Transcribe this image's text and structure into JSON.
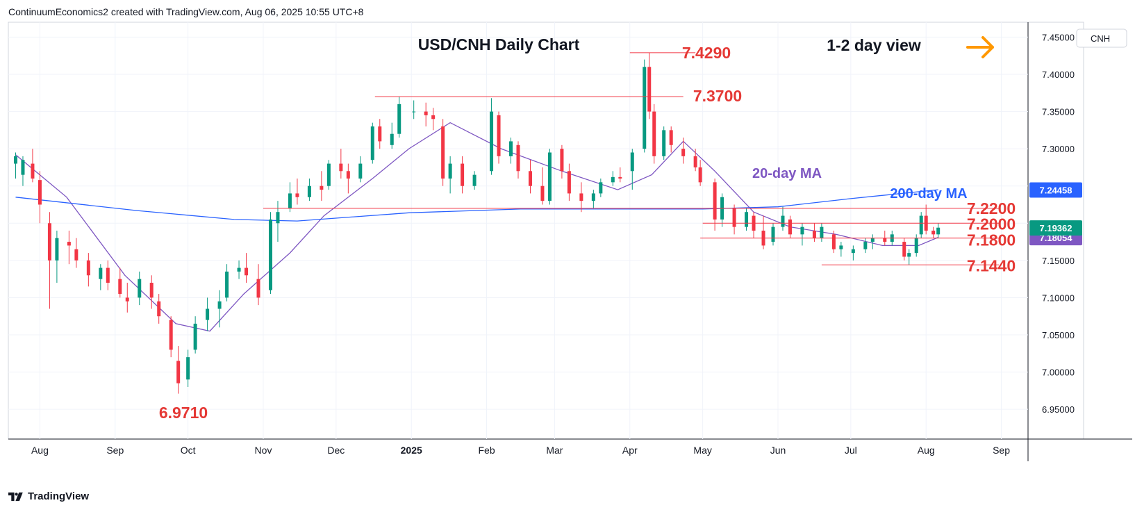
{
  "header": "ContinuumEconomics2 created with TradingView.com, Aug 06, 2025 10:55 UTC+8",
  "footer": {
    "brand": "TradingView"
  },
  "colors": {
    "up": "#089981",
    "down": "#f23645",
    "ma20": "#7e57c2",
    "ma200": "#2962ff",
    "level": "#f23645",
    "level_text": "#e53935",
    "arrow": "#ff9800"
  },
  "chart_data": {
    "type": "candlestick",
    "title": "USD/CNH Daily Chart",
    "view_label": "1-2 day view",
    "view_direction": "right-arrow",
    "symbol": "CNH",
    "ylim": [
      6.91,
      7.47
    ],
    "y_ticks": [
      "7.45000",
      "7.40000",
      "7.35000",
      "7.30000",
      "7.25000",
      "7.20000",
      "7.15000",
      "7.10000",
      "7.05000",
      "7.00000",
      "6.95000"
    ],
    "x_ticks": [
      "Aug",
      "Sep",
      "Oct",
      "Nov",
      "Dec",
      "2025",
      "Feb",
      "Mar",
      "Apr",
      "May",
      "Jun",
      "Jul",
      "Aug",
      "Sep"
    ],
    "last_price": "7.19362",
    "ma200_value": "7.24458",
    "ma20_value": "7.18054",
    "series": [
      {
        "name": "20-day MA",
        "color": "#7e57c2",
        "points": [
          [
            "2024-07-22",
            7.292
          ],
          [
            "2024-08-12",
            7.235
          ],
          [
            "2024-09-05",
            7.13
          ],
          [
            "2024-09-26",
            7.065
          ],
          [
            "2024-10-10",
            7.055
          ],
          [
            "2024-10-24",
            7.105
          ],
          [
            "2024-11-12",
            7.16
          ],
          [
            "2024-11-26",
            7.21
          ],
          [
            "2024-12-16",
            7.26
          ],
          [
            "2024-12-31",
            7.3
          ],
          [
            "2025-01-17",
            7.335
          ],
          [
            "2025-02-07",
            7.3
          ],
          [
            "2025-03-04",
            7.27
          ],
          [
            "2025-03-27",
            7.245
          ],
          [
            "2025-04-10",
            7.265
          ],
          [
            "2025-04-23",
            7.31
          ],
          [
            "2025-05-06",
            7.27
          ],
          [
            "2025-05-22",
            7.215
          ],
          [
            "2025-06-06",
            7.195
          ],
          [
            "2025-06-25",
            7.185
          ],
          [
            "2025-07-14",
            7.17
          ],
          [
            "2025-07-29",
            7.17
          ],
          [
            "2025-08-06",
            7.181
          ]
        ]
      },
      {
        "name": "200-day MA",
        "color": "#2962ff",
        "points": [
          [
            "2024-07-22",
            7.235
          ],
          [
            "2024-09-10",
            7.217
          ],
          [
            "2024-10-20",
            7.205
          ],
          [
            "2024-11-15",
            7.203
          ],
          [
            "2024-12-31",
            7.214
          ],
          [
            "2025-02-15",
            7.219
          ],
          [
            "2025-04-01",
            7.219
          ],
          [
            "2025-05-01",
            7.219
          ],
          [
            "2025-06-01",
            7.222
          ],
          [
            "2025-07-01",
            7.233
          ],
          [
            "2025-08-06",
            7.245
          ]
        ]
      }
    ],
    "candles_ohlc": [
      [
        "2024-07-22",
        7.28,
        7.295,
        7.26,
        7.29
      ],
      [
        "2024-07-25",
        7.265,
        7.29,
        7.25,
        7.285
      ],
      [
        "2024-07-29",
        7.28,
        7.3,
        7.255,
        7.26
      ],
      [
        "2024-08-01",
        7.258,
        7.27,
        7.2,
        7.225
      ],
      [
        "2024-08-05",
        7.2,
        7.215,
        7.085,
        7.15
      ],
      [
        "2024-08-08",
        7.15,
        7.19,
        7.12,
        7.18
      ],
      [
        "2024-08-13",
        7.175,
        7.19,
        7.145,
        7.17
      ],
      [
        "2024-08-16",
        7.165,
        7.18,
        7.14,
        7.15
      ],
      [
        "2024-08-21",
        7.15,
        7.16,
        7.115,
        7.13
      ],
      [
        "2024-08-26",
        7.125,
        7.145,
        7.11,
        7.14
      ],
      [
        "2024-08-29",
        7.14,
        7.15,
        7.11,
        7.12
      ],
      [
        "2024-09-03",
        7.125,
        7.14,
        7.1,
        7.105
      ],
      [
        "2024-09-06",
        7.1,
        7.12,
        7.08,
        7.095
      ],
      [
        "2024-09-11",
        7.1,
        7.135,
        7.09,
        7.125
      ],
      [
        "2024-09-16",
        7.12,
        7.13,
        7.085,
        7.1
      ],
      [
        "2024-09-19",
        7.095,
        7.105,
        7.065,
        7.075
      ],
      [
        "2024-09-24",
        7.07,
        7.075,
        7.02,
        7.03
      ],
      [
        "2024-09-27",
        7.015,
        7.035,
        6.971,
        6.985
      ],
      [
        "2024-10-01",
        6.99,
        7.03,
        6.98,
        7.02
      ],
      [
        "2024-10-04",
        7.03,
        7.075,
        7.025,
        7.065
      ],
      [
        "2024-10-09",
        7.07,
        7.1,
        7.055,
        7.085
      ],
      [
        "2024-10-14",
        7.085,
        7.11,
        7.06,
        7.095
      ],
      [
        "2024-10-17",
        7.1,
        7.145,
        7.095,
        7.135
      ],
      [
        "2024-10-22",
        7.135,
        7.15,
        7.125,
        7.14
      ],
      [
        "2024-10-25",
        7.14,
        7.16,
        7.12,
        7.13
      ],
      [
        "2024-10-30",
        7.125,
        7.145,
        7.09,
        7.1
      ],
      [
        "2024-11-04",
        7.11,
        7.215,
        7.105,
        7.205
      ],
      [
        "2024-11-07",
        7.2,
        7.23,
        7.175,
        7.215
      ],
      [
        "2024-11-12",
        7.22,
        7.255,
        7.215,
        7.24
      ],
      [
        "2024-11-15",
        7.24,
        7.26,
        7.225,
        7.235
      ],
      [
        "2024-11-20",
        7.235,
        7.26,
        7.23,
        7.25
      ],
      [
        "2024-11-25",
        7.25,
        7.27,
        7.23,
        7.245
      ],
      [
        "2024-11-28",
        7.25,
        7.285,
        7.245,
        7.28
      ],
      [
        "2024-12-03",
        7.28,
        7.3,
        7.26,
        7.27
      ],
      [
        "2024-12-06",
        7.27,
        7.28,
        7.24,
        7.26
      ],
      [
        "2024-12-11",
        7.26,
        7.29,
        7.255,
        7.28
      ],
      [
        "2024-12-16",
        7.285,
        7.335,
        7.28,
        7.33
      ],
      [
        "2024-12-19",
        7.33,
        7.34,
        7.3,
        7.31
      ],
      [
        "2024-12-24",
        7.305,
        7.335,
        7.3,
        7.32
      ],
      [
        "2024-12-27",
        7.32,
        7.37,
        7.315,
        7.36
      ],
      [
        "2025-01-02",
        7.35,
        7.365,
        7.34,
        7.35
      ],
      [
        "2025-01-07",
        7.35,
        7.362,
        7.33,
        7.345
      ],
      [
        "2025-01-10",
        7.345,
        7.355,
        7.325,
        7.34
      ],
      [
        "2025-01-14",
        7.33,
        7.34,
        7.25,
        7.26
      ],
      [
        "2025-01-17",
        7.26,
        7.29,
        7.24,
        7.28
      ],
      [
        "2025-01-22",
        7.28,
        7.29,
        7.24,
        7.25
      ],
      [
        "2025-01-27",
        7.25,
        7.27,
        7.245,
        7.265
      ],
      [
        "2025-02-03",
        7.27,
        7.368,
        7.265,
        7.35
      ],
      [
        "2025-02-06",
        7.345,
        7.35,
        7.28,
        7.29
      ],
      [
        "2025-02-11",
        7.29,
        7.315,
        7.28,
        7.31
      ],
      [
        "2025-02-14",
        7.305,
        7.31,
        7.26,
        7.27
      ],
      [
        "2025-02-19",
        7.27,
        7.285,
        7.24,
        7.25
      ],
      [
        "2025-02-24",
        7.25,
        7.275,
        7.225,
        7.23
      ],
      [
        "2025-02-27",
        7.23,
        7.3,
        7.225,
        7.295
      ],
      [
        "2025-03-04",
        7.3,
        7.305,
        7.26,
        7.27
      ],
      [
        "2025-03-07",
        7.27,
        7.28,
        7.23,
        7.24
      ],
      [
        "2025-03-12",
        7.24,
        7.255,
        7.215,
        7.23
      ],
      [
        "2025-03-17",
        7.23,
        7.245,
        7.22,
        7.24
      ],
      [
        "2025-03-20",
        7.24,
        7.26,
        7.235,
        7.255
      ],
      [
        "2025-03-25",
        7.255,
        7.27,
        7.25,
        7.262
      ],
      [
        "2025-03-28",
        7.262,
        7.275,
        7.255,
        7.26
      ],
      [
        "2025-04-02",
        7.27,
        7.3,
        7.245,
        7.295
      ],
      [
        "2025-04-07",
        7.3,
        7.42,
        7.295,
        7.41
      ],
      [
        "2025-04-09",
        7.41,
        7.429,
        7.34,
        7.35
      ],
      [
        "2025-04-11",
        7.35,
        7.36,
        7.28,
        7.29
      ],
      [
        "2025-04-15",
        7.29,
        7.33,
        7.285,
        7.325
      ],
      [
        "2025-04-18",
        7.325,
        7.33,
        7.295,
        7.305
      ],
      [
        "2025-04-23",
        7.3,
        7.315,
        7.28,
        7.29
      ],
      [
        "2025-04-28",
        7.29,
        7.3,
        7.27,
        7.275
      ],
      [
        "2025-04-30",
        7.275,
        7.285,
        7.25,
        7.255
      ],
      [
        "2025-05-06",
        7.255,
        7.26,
        7.19,
        7.205
      ],
      [
        "2025-05-09",
        7.205,
        7.24,
        7.195,
        7.235
      ],
      [
        "2025-05-14",
        7.22,
        7.225,
        7.185,
        7.195
      ],
      [
        "2025-05-19",
        7.195,
        7.22,
        7.19,
        7.215
      ],
      [
        "2025-05-22",
        7.21,
        7.215,
        7.18,
        7.19
      ],
      [
        "2025-05-26",
        7.19,
        7.21,
        7.165,
        7.17
      ],
      [
        "2025-05-30",
        7.175,
        7.2,
        7.17,
        7.195
      ],
      [
        "2025-06-03",
        7.195,
        7.222,
        7.19,
        7.21
      ],
      [
        "2025-06-06",
        7.205,
        7.21,
        7.18,
        7.185
      ],
      [
        "2025-06-11",
        7.185,
        7.2,
        7.17,
        7.195
      ],
      [
        "2025-06-16",
        7.19,
        7.2,
        7.175,
        7.18
      ],
      [
        "2025-06-19",
        7.18,
        7.2,
        7.175,
        7.195
      ],
      [
        "2025-06-24",
        7.185,
        7.19,
        7.16,
        7.165
      ],
      [
        "2025-06-27",
        7.165,
        7.175,
        7.155,
        7.17
      ],
      [
        "2025-07-02",
        7.16,
        7.17,
        7.15,
        7.165
      ],
      [
        "2025-07-07",
        7.165,
        7.18,
        7.16,
        7.175
      ],
      [
        "2025-07-10",
        7.175,
        7.185,
        7.165,
        7.18
      ],
      [
        "2025-07-15",
        7.18,
        7.19,
        7.17,
        7.175
      ],
      [
        "2025-07-18",
        7.175,
        7.19,
        7.17,
        7.185
      ],
      [
        "2025-07-23",
        7.175,
        7.18,
        7.15,
        7.155
      ],
      [
        "2025-07-25",
        7.155,
        7.165,
        7.144,
        7.16
      ],
      [
        "2025-07-28",
        7.16,
        7.185,
        7.155,
        7.18
      ],
      [
        "2025-07-30",
        7.185,
        7.215,
        7.18,
        7.21
      ],
      [
        "2025-08-01",
        7.21,
        7.225,
        7.185,
        7.19
      ],
      [
        "2025-08-04",
        7.19,
        7.195,
        7.18,
        7.185
      ],
      [
        "2025-08-06",
        7.185,
        7.2,
        7.18,
        7.194
      ]
    ],
    "levels": [
      {
        "label": "7.4290",
        "value": 7.429,
        "from": "2025-04-01",
        "to": "2025-04-28"
      },
      {
        "label": "7.3700",
        "value": 7.37,
        "from": "2024-12-17",
        "to": "2025-04-23"
      },
      {
        "label": "7.2200",
        "value": 7.22,
        "from": "2024-11-01",
        "to": "2025-08-31"
      },
      {
        "label": "7.2000",
        "value": 7.2,
        "from": "2025-05-01",
        "to": "2025-08-31"
      },
      {
        "label": "7.1800",
        "value": 7.18,
        "from": "2025-04-30",
        "to": "2025-08-31"
      },
      {
        "label": "7.1440",
        "value": 7.144,
        "from": "2025-06-19",
        "to": "2025-08-31"
      },
      {
        "label": "6.9710",
        "value": 6.971,
        "from": null,
        "to": null
      }
    ]
  }
}
